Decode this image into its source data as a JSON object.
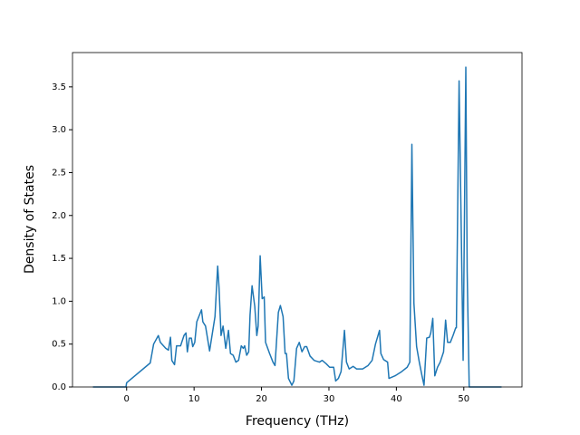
{
  "chart_data": {
    "type": "line",
    "xlabel": "Frequency (THz)",
    "ylabel": "Density of States",
    "x": [
      -5,
      -0.1,
      0,
      3.5,
      4.0,
      4.7,
      5.0,
      5.8,
      6.2,
      6.5,
      6.7,
      7.1,
      7.4,
      8.0,
      8.5,
      8.8,
      9.0,
      9.3,
      9.6,
      9.8,
      10.1,
      10.4,
      11.1,
      11.3,
      11.7,
      12.3,
      12.5,
      13.1,
      13.5,
      13.7,
      14.0,
      14.3,
      14.7,
      15.1,
      15.4,
      15.8,
      16.2,
      16.6,
      17.0,
      17.3,
      17.5,
      17.8,
      18.1,
      18.3,
      18.6,
      19.0,
      19.3,
      19.5,
      19.8,
      20.1,
      20.4,
      20.6,
      21.2,
      21.7,
      22.0,
      22.5,
      22.8,
      23.2,
      23.5,
      23.7,
      24.0,
      24.5,
      24.8,
      25.2,
      25.6,
      26.0,
      26.4,
      26.7,
      27.2,
      27.8,
      28.6,
      29.0,
      29.6,
      30.1,
      30.7,
      31.0,
      31.4,
      31.8,
      32.3,
      32.6,
      33.0,
      33.6,
      34.1,
      35.0,
      35.8,
      36.4,
      36.9,
      37.5,
      37.7,
      38.1,
      38.7,
      38.9,
      39.8,
      40.8,
      41.6,
      42.0,
      42.3,
      42.6,
      43.0,
      43.4,
      43.8,
      44.1,
      44.5,
      44.9,
      45.1,
      45.4,
      45.7,
      46.1,
      46.5,
      47.0,
      47.3,
      47.6,
      48.0,
      48.4,
      48.8,
      48.9,
      49.3,
      49.9,
      50.3,
      50.5,
      50.8,
      55.6
    ],
    "series": [
      {
        "name": "DOS",
        "color": "#1f77b4",
        "values": [
          0,
          0,
          0.05,
          0.28,
          0.5,
          0.6,
          0.52,
          0.45,
          0.43,
          0.58,
          0.31,
          0.26,
          0.48,
          0.48,
          0.6,
          0.63,
          0.41,
          0.57,
          0.57,
          0.47,
          0.52,
          0.76,
          0.9,
          0.76,
          0.71,
          0.42,
          0.52,
          0.82,
          1.41,
          1.16,
          0.6,
          0.71,
          0.45,
          0.66,
          0.39,
          0.37,
          0.29,
          0.31,
          0.48,
          0.45,
          0.48,
          0.37,
          0.41,
          0.84,
          1.18,
          0.94,
          0.6,
          0.71,
          1.53,
          1.03,
          1.05,
          0.52,
          0.39,
          0.29,
          0.25,
          0.87,
          0.95,
          0.82,
          0.39,
          0.39,
          0.1,
          0.02,
          0.07,
          0.45,
          0.52,
          0.41,
          0.47,
          0.47,
          0.36,
          0.31,
          0.29,
          0.31,
          0.27,
          0.23,
          0.23,
          0.07,
          0.1,
          0.18,
          0.66,
          0.29,
          0.21,
          0.24,
          0.21,
          0.21,
          0.25,
          0.31,
          0.5,
          0.66,
          0.39,
          0.32,
          0.29,
          0.1,
          0.13,
          0.18,
          0.23,
          0.29,
          2.83,
          0.98,
          0.47,
          0.29,
          0.13,
          0.02,
          0.57,
          0.58,
          0.63,
          0.8,
          0.13,
          0.23,
          0.29,
          0.41,
          0.78,
          0.52,
          0.52,
          0.6,
          0.69,
          0.69,
          3.57,
          0.31,
          3.73,
          1.35,
          0,
          0
        ]
      }
    ],
    "xlim": [
      -8.03,
      58.63
    ],
    "ylim": [
      0,
      3.9
    ],
    "xticks": [
      0,
      10,
      20,
      30,
      40,
      50
    ],
    "yticks": [
      {
        "value": 0,
        "label": "0.0"
      },
      0.5,
      {
        "value": 1,
        "label": "1.0"
      },
      1.5,
      {
        "value": 2,
        "label": "2.0"
      },
      2.5,
      {
        "value": 3,
        "label": "3.0"
      },
      3.5
    ]
  }
}
